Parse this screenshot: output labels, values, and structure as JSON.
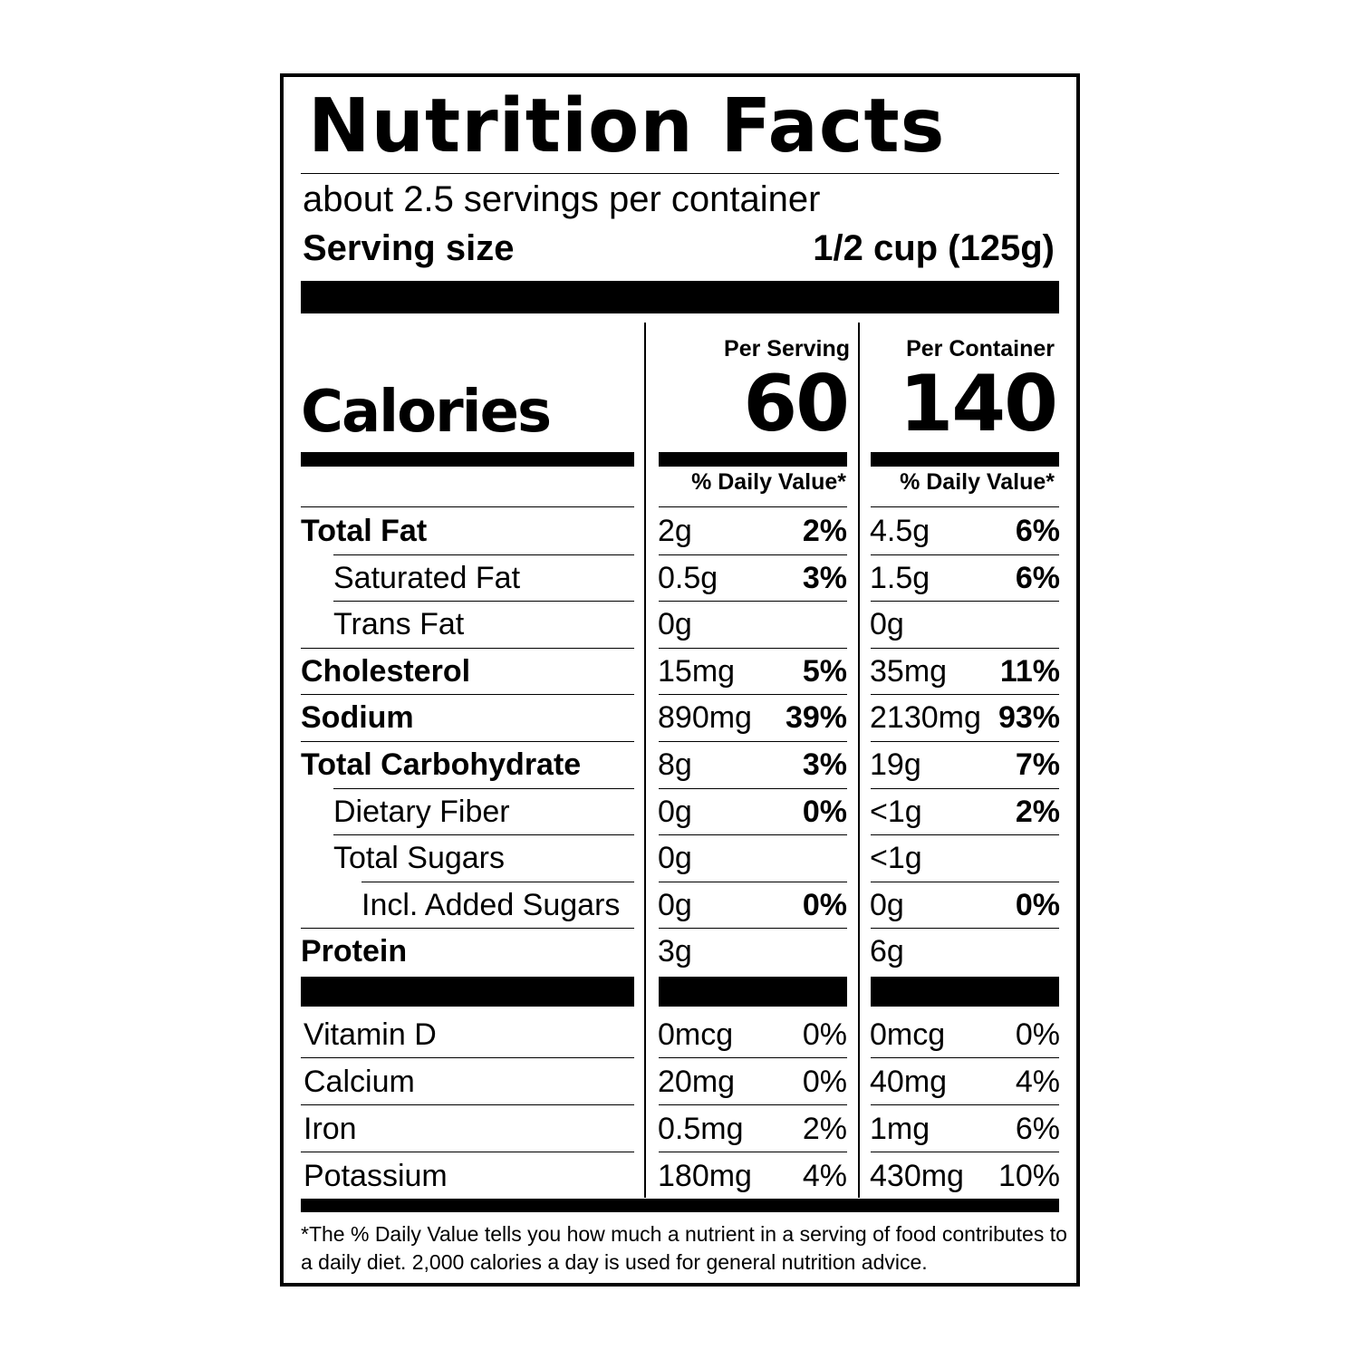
{
  "title": "Nutrition Facts",
  "servings_per_container": "about 2.5 servings per container",
  "serving_size_label": "Serving size",
  "serving_size_value": "1/2 cup (125g)",
  "calories_label": "Calories",
  "columns": [
    {
      "header": "Per Serving",
      "calories": "60",
      "dv_header": "% Daily Value*"
    },
    {
      "header": "Per Container",
      "calories": "140",
      "dv_header": "% Daily Value*"
    }
  ],
  "nutrients": [
    {
      "name": "Total Fat",
      "bold": true,
      "indent": 0,
      "serving": {
        "amount": "2g",
        "dv": "2%"
      },
      "container": {
        "amount": "4.5g",
        "dv": "6%"
      }
    },
    {
      "name": "Saturated Fat",
      "bold": false,
      "indent": 1,
      "serving": {
        "amount": "0.5g",
        "dv": "3%"
      },
      "container": {
        "amount": "1.5g",
        "dv": "6%"
      }
    },
    {
      "name": "Trans Fat",
      "bold": false,
      "indent": 1,
      "serving": {
        "amount": "0g",
        "dv": ""
      },
      "container": {
        "amount": "0g",
        "dv": ""
      }
    },
    {
      "name": "Cholesterol",
      "bold": true,
      "indent": 0,
      "serving": {
        "amount": "15mg",
        "dv": "5%"
      },
      "container": {
        "amount": "35mg",
        "dv": "11%"
      }
    },
    {
      "name": "Sodium",
      "bold": true,
      "indent": 0,
      "serving": {
        "amount": "890mg",
        "dv": "39%"
      },
      "container": {
        "amount": "2130mg",
        "dv": "93%"
      }
    },
    {
      "name": "Total Carbohydrate",
      "bold": true,
      "indent": 0,
      "serving": {
        "amount": "8g",
        "dv": "3%"
      },
      "container": {
        "amount": "19g",
        "dv": "7%"
      }
    },
    {
      "name": "Dietary Fiber",
      "bold": false,
      "indent": 1,
      "serving": {
        "amount": "0g",
        "dv": "0%"
      },
      "container": {
        "amount": "<1g",
        "dv": "2%"
      }
    },
    {
      "name": "Total Sugars",
      "bold": false,
      "indent": 1,
      "serving": {
        "amount": "0g",
        "dv": ""
      },
      "container": {
        "amount": "<1g",
        "dv": ""
      }
    },
    {
      "name": "Incl. Added Sugars",
      "bold": false,
      "indent": 2,
      "serving": {
        "amount": "0g",
        "dv": "0%"
      },
      "container": {
        "amount": "0g",
        "dv": "0%"
      }
    },
    {
      "name": "Protein",
      "bold": true,
      "indent": 0,
      "serving": {
        "amount": "3g",
        "dv": ""
      },
      "container": {
        "amount": "6g",
        "dv": ""
      }
    }
  ],
  "vitamins": [
    {
      "name": "Vitamin D",
      "serving": {
        "amount": "0mcg",
        "dv": "0%"
      },
      "container": {
        "amount": "0mcg",
        "dv": "0%"
      }
    },
    {
      "name": "Calcium",
      "serving": {
        "amount": "20mg",
        "dv": "0%"
      },
      "container": {
        "amount": "40mg",
        "dv": "4%"
      }
    },
    {
      "name": "Iron",
      "serving": {
        "amount": "0.5mg",
        "dv": "2%"
      },
      "container": {
        "amount": "1mg",
        "dv": "6%"
      }
    },
    {
      "name": "Potassium",
      "serving": {
        "amount": "180mg",
        "dv": "4%"
      },
      "container": {
        "amount": "430mg",
        "dv": "10%"
      }
    }
  ],
  "footnote": "*The % Daily Value tells you how much a nutrient in a serving of food contributes to a daily diet. 2,000 calories a day is used for general nutrition advice."
}
